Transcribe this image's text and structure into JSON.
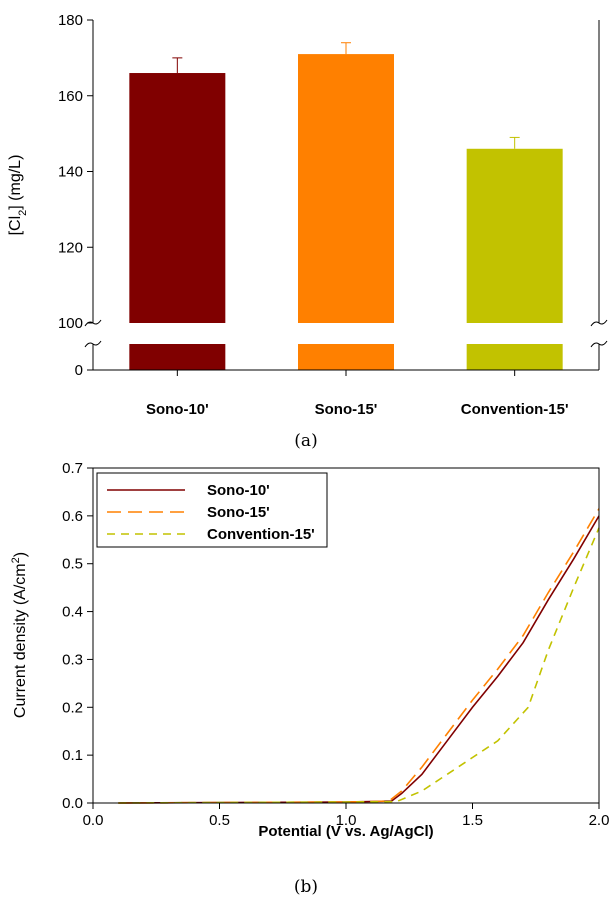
{
  "chart_data": [
    {
      "type": "bar",
      "panel": "(a)",
      "ylabel": {
        "pre": "[Cl",
        "sub": "2",
        "post": "] (mg/L)"
      },
      "xlabel": "",
      "axis_break": {
        "lower": [
          0,
          5
        ],
        "upper": [
          100,
          180
        ]
      },
      "yticks": [
        "0",
        "100",
        "120",
        "140",
        "160",
        "180"
      ],
      "categories": [
        "Sono-10'",
        "Sono-15'",
        "Convention-15'"
      ],
      "values": [
        166,
        171,
        146
      ],
      "errors": [
        4,
        3,
        3
      ],
      "colors": [
        "#800000",
        "#ff8000",
        "#c2c200"
      ],
      "grid": false
    },
    {
      "type": "line",
      "panel": "(b)",
      "xlabel": "Potential (V vs. Ag/AgCl)",
      "ylabel": {
        "pre": "Current density (A/cm",
        "sup": "2",
        "post": ")"
      },
      "xlim": [
        0.0,
        2.0
      ],
      "ylim": [
        0.0,
        0.7
      ],
      "xticks": [
        "0.0",
        "0.5",
        "1.0",
        "1.5",
        "2.0"
      ],
      "yticks": [
        "0.0",
        "0.1",
        "0.2",
        "0.3",
        "0.4",
        "0.5",
        "0.6",
        "0.7"
      ],
      "legend_position": "top-left",
      "grid": false,
      "series": [
        {
          "name": "Sono-10'",
          "color": "#800000",
          "dash": "solid",
          "x": [
            0.1,
            1.0,
            1.18,
            1.22,
            1.3,
            1.4,
            1.5,
            1.6,
            1.7,
            1.8,
            1.9,
            2.0
          ],
          "y": [
            0.0,
            0.002,
            0.004,
            0.02,
            0.06,
            0.13,
            0.2,
            0.265,
            0.335,
            0.425,
            0.51,
            0.6
          ]
        },
        {
          "name": "Sono-15'",
          "color": "#ff8000",
          "dash": "long",
          "x": [
            0.1,
            1.0,
            1.17,
            1.22,
            1.3,
            1.4,
            1.5,
            1.6,
            1.7,
            1.8,
            1.9,
            2.0
          ],
          "y": [
            0.0,
            0.002,
            0.004,
            0.025,
            0.075,
            0.145,
            0.215,
            0.28,
            0.35,
            0.44,
            0.525,
            0.615
          ]
        },
        {
          "name": "Convention-15'",
          "color": "#c2c200",
          "dash": "short",
          "x": [
            0.1,
            1.0,
            1.2,
            1.3,
            1.4,
            1.5,
            1.6,
            1.72,
            1.8,
            1.9,
            2.0
          ],
          "y": [
            0.0,
            0.002,
            0.003,
            0.025,
            0.06,
            0.095,
            0.13,
            0.2,
            0.32,
            0.45,
            0.575
          ]
        }
      ]
    }
  ]
}
